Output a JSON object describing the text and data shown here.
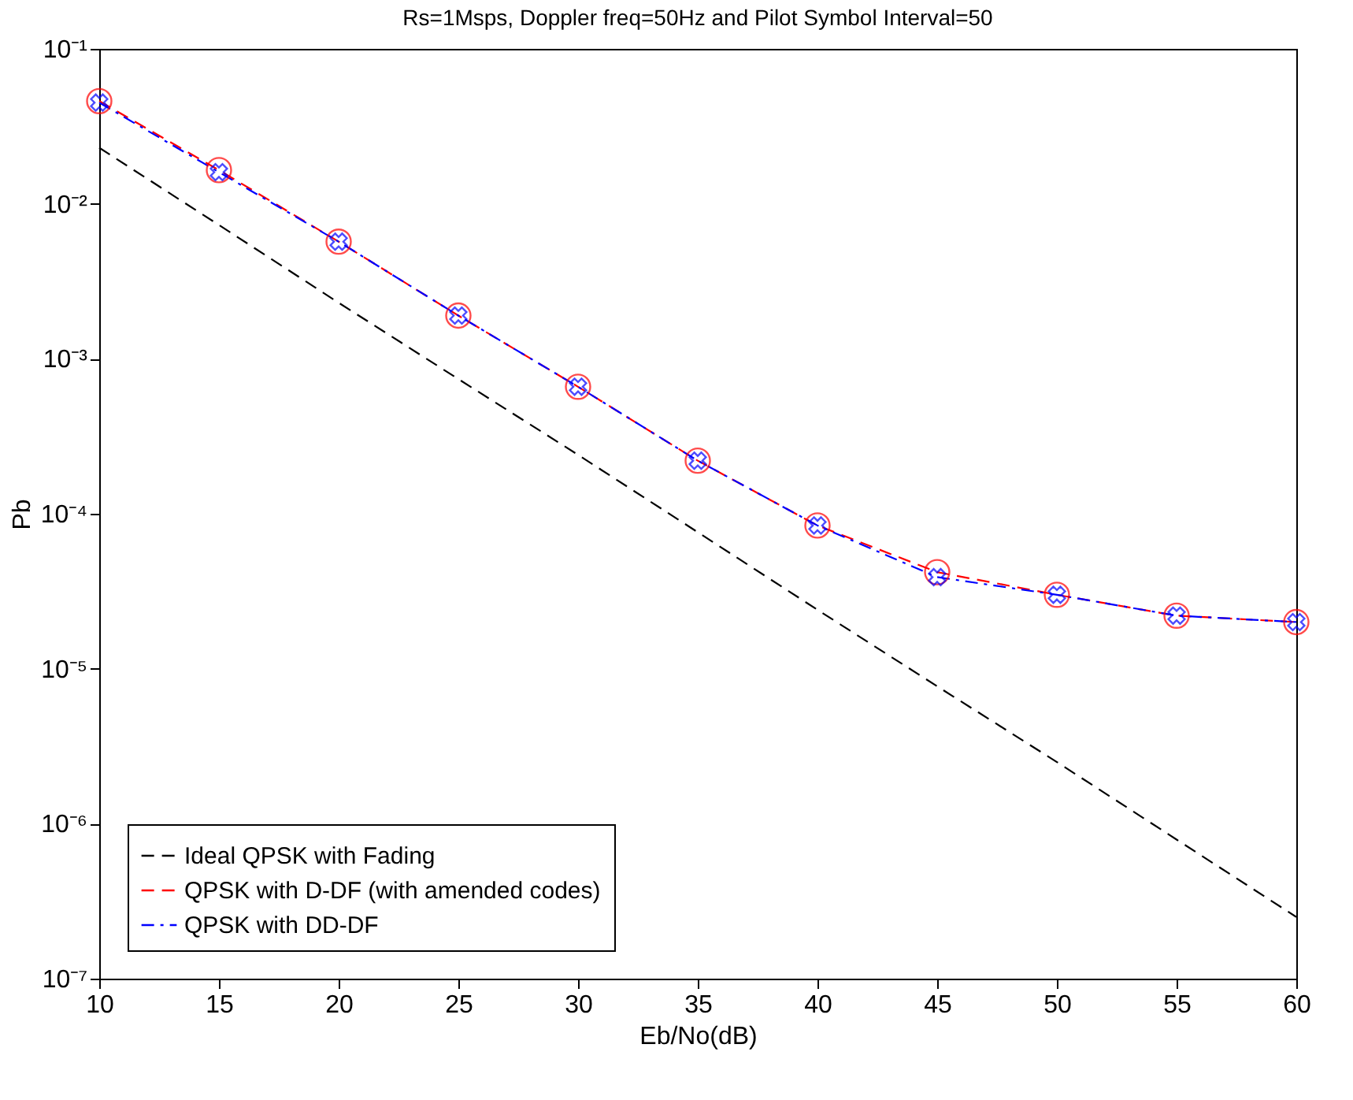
{
  "chart_data": {
    "type": "line",
    "title": "Rs=1Msps, Doppler freq=50Hz and Pilot Symbol Interval=50",
    "xlabel": "Eb/No(dB)",
    "ylabel": "Pb",
    "x": [
      10,
      15,
      20,
      25,
      30,
      35,
      40,
      45,
      50,
      55,
      60
    ],
    "series": [
      {
        "name": "Ideal QPSK with Fading",
        "color": "#000000",
        "line_style": "dashed",
        "marker": "none",
        "values": [
          0.023,
          0.0073,
          0.0023,
          0.00074,
          0.00024,
          7.6e-05,
          2.4e-05,
          7.7e-06,
          2.5e-06,
          7.9e-07,
          2.5e-07
        ]
      },
      {
        "name": "QPSK with D-DF (with amended codes)",
        "color": "#ff0000",
        "line_style": "dashed",
        "marker": "circle",
        "values": [
          0.046,
          0.0165,
          0.0057,
          0.0019,
          0.00066,
          0.00022,
          8.4e-05,
          4.2e-05,
          3e-05,
          2.2e-05,
          2e-05
        ]
      },
      {
        "name": "QPSK with DD-DF",
        "color": "#0000ff",
        "line_style": "dashdot",
        "marker": "cross",
        "values": [
          0.045,
          0.016,
          0.0057,
          0.0019,
          0.00066,
          0.00022,
          8.4e-05,
          3.9e-05,
          3e-05,
          2.2e-05,
          2e-05
        ]
      }
    ],
    "log": true,
    "xlim": [
      10,
      60
    ],
    "xticks": [
      10,
      15,
      20,
      25,
      30,
      35,
      40,
      45,
      50,
      55,
      60
    ],
    "ylim": [
      1e-07,
      0.1
    ],
    "yticks": [
      {
        "value": 1e-07,
        "label": "10⁻⁷"
      },
      {
        "value": 1e-06,
        "label": "10⁻⁶"
      },
      {
        "value": 1e-05,
        "label": "10⁻⁵"
      },
      {
        "value": 0.0001,
        "label": "10⁻⁴"
      },
      {
        "value": 0.001,
        "label": "10⁻³"
      },
      {
        "value": 0.01,
        "label": "10⁻²"
      },
      {
        "value": 0.1,
        "label": "10⁻¹"
      }
    ],
    "grid": false,
    "legend": "bottom left"
  }
}
